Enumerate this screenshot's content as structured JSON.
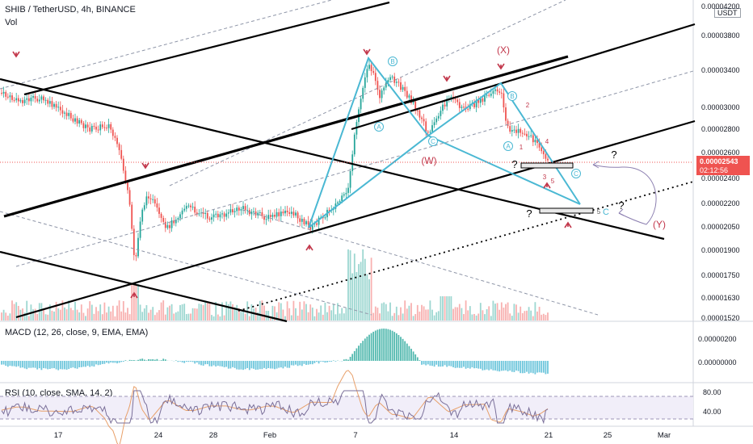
{
  "header": {
    "symbol": "SHIB / TetherUSD, 4h, BINANCE",
    "volume_label": "Vol",
    "quote_currency": "USDT"
  },
  "price_axis": {
    "ticks": [
      "0.00004200",
      "0.00003800",
      "0.00003400",
      "0.00003000",
      "0.00002800",
      "0.00002600",
      "0.00002400",
      "0.00002200",
      "0.00002050",
      "0.00001900",
      "0.00001750",
      "0.00001630",
      "0.00001520"
    ],
    "current_price": "0.00002543",
    "countdown": "02:12:56"
  },
  "date_axis": [
    "17",
    "24",
    "28",
    "Feb",
    "7",
    "14",
    "21",
    "25",
    "Mar"
  ],
  "annotations": {
    "wave_labels_blue": [
      "B",
      "A",
      "C",
      "B",
      "A",
      "C",
      "C"
    ],
    "wave_labels_red": [
      "(X)",
      "(W)",
      "(Y)",
      "1",
      "2",
      "3",
      "4",
      "5"
    ],
    "wave5_c_label": "C",
    "wave5_c_digit": "5",
    "question_marks": [
      "?",
      "?",
      "?",
      "?"
    ]
  },
  "indicators": {
    "macd_label": "MACD (12, 26, close, 9, EMA, EMA)",
    "macd_ticks": [
      "0.00000200",
      "0.00000000"
    ],
    "rsi_label": "RSI (10, close, SMA, 14, 2)",
    "rsi_ticks": [
      "80.00",
      "40.00"
    ]
  },
  "colors": {
    "bull": "#26a69a",
    "bear": "#ef5350",
    "pattern": "#4ab8d3",
    "annotation_red": "#c2374b",
    "price_tag": "#ef5350"
  },
  "chart_data": {
    "type": "candlestick",
    "x": [
      "17",
      "24",
      "28",
      "Feb",
      "7",
      "14",
      "21"
    ],
    "close": [
      2.9e-05,
      2.05e-05,
      2.15e-05,
      2.1e-05,
      3.45e-05,
      2.95e-05,
      2.54e-05
    ],
    "ylim": [
      1.52e-05,
      4.2e-05
    ],
    "log_scale": true,
    "grid": false
  }
}
